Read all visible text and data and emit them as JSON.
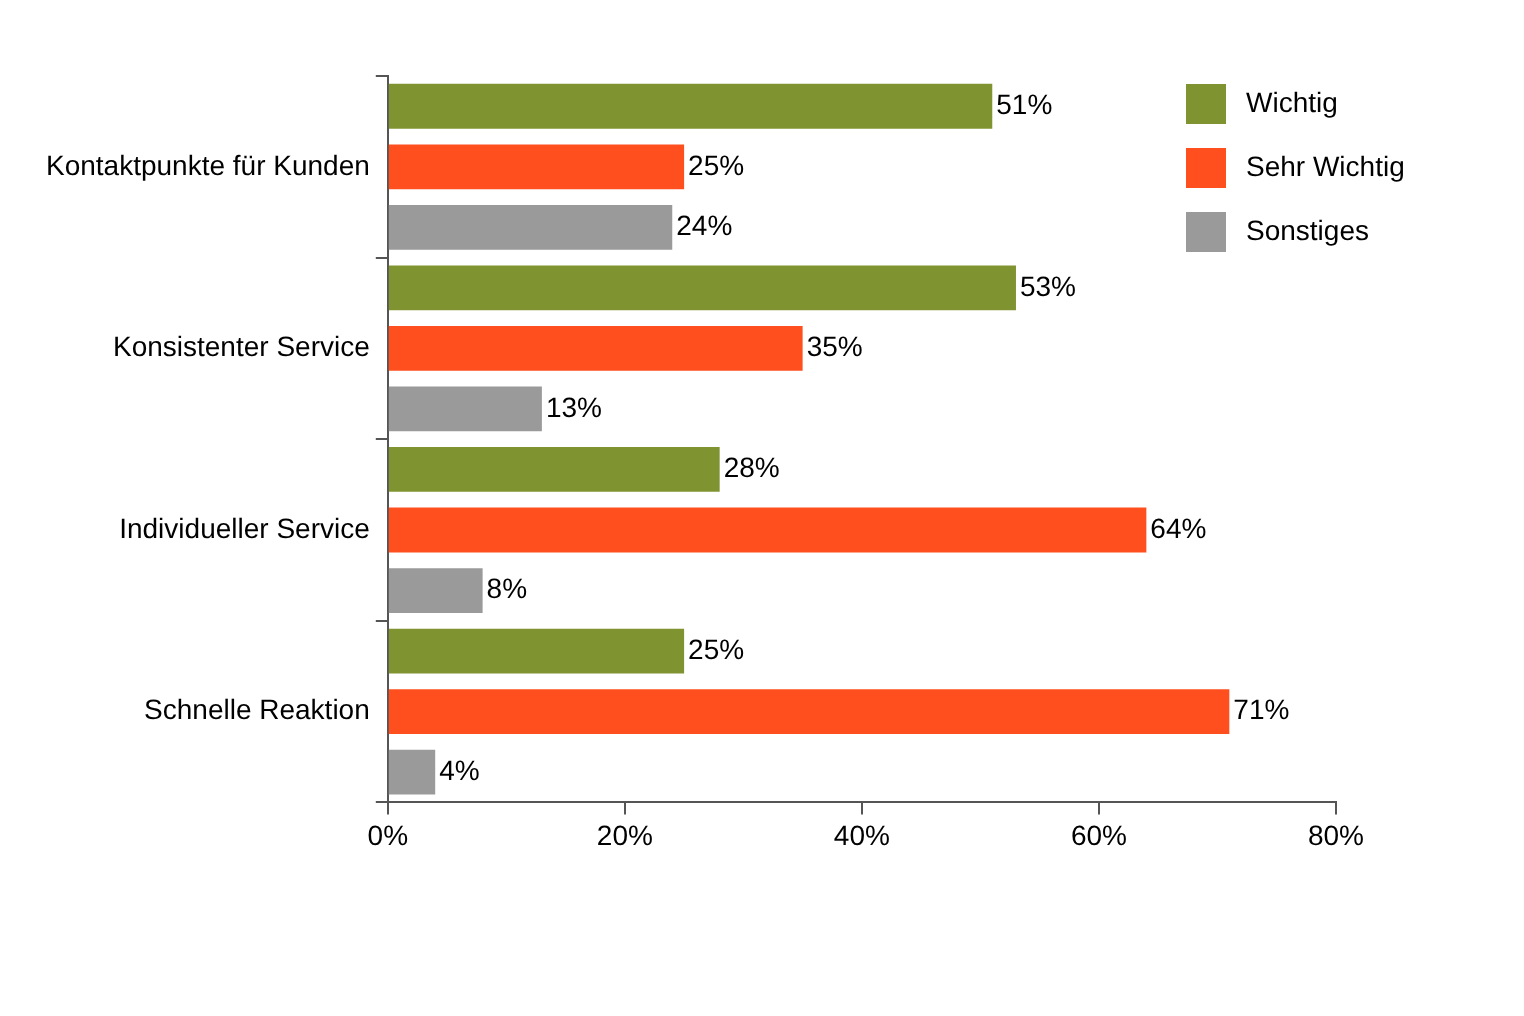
{
  "chart_data": {
    "type": "bar",
    "orientation": "horizontal",
    "categories": [
      "Kontaktpunkte für Kunden",
      "Konsistenter Service",
      "Individueller Service",
      "Schnelle Reaktion"
    ],
    "series": [
      {
        "name": "Wichtig",
        "color": "#7f9431",
        "values": [
          51,
          53,
          28,
          25
        ],
        "value_labels": [
          "51%",
          "53%",
          "28%",
          "25%"
        ]
      },
      {
        "name": "Sehr Wichtig",
        "color": "#ff4f1f",
        "values": [
          25,
          35,
          64,
          71
        ],
        "value_labels": [
          "25%",
          "35%",
          "64%",
          "71%"
        ]
      },
      {
        "name": "Sonstiges",
        "color": "#9a9a9a",
        "values": [
          24,
          13,
          8,
          4
        ],
        "value_labels": [
          "24%",
          "13%",
          "8%",
          "4%"
        ]
      }
    ],
    "xlim": [
      0,
      80
    ],
    "xticks": [
      {
        "value": 0,
        "label": "0%"
      },
      {
        "value": 20,
        "label": "20%"
      },
      {
        "value": 40,
        "label": "40%"
      },
      {
        "value": 60,
        "label": "60%"
      },
      {
        "value": 80,
        "label": "80%"
      }
    ],
    "grid": false,
    "legend": "top right"
  }
}
